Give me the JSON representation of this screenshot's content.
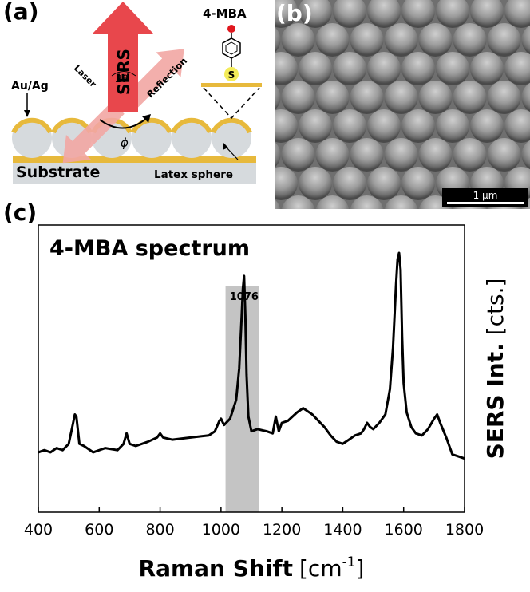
{
  "panels": {
    "a": "(a)",
    "b": "(b)",
    "c": "(c)"
  },
  "schematic": {
    "molecule": "4-MBA",
    "sulfur": "S",
    "coating": "Au/Ag",
    "substrate": "Substrate",
    "sphere": "Latex sphere",
    "laser": "Laser",
    "sers": "SERS",
    "reflection": "Reflection",
    "angle_2theta": "2θ",
    "angle_phi": "ϕ"
  },
  "sem": {
    "scale_bar": "1 µm"
  },
  "colors": {
    "gold": "#e7b93c",
    "sphere": "#d6dadd",
    "substrate": "#d6dadd",
    "sers_arrow": "#e8474c",
    "laser_arrow": "#f2a6a3",
    "highlight_band": "#c4c4c4",
    "sem_bg": "#7d7d7d"
  },
  "chart_data": {
    "type": "line",
    "title": "4-MBA spectrum",
    "xlabel": "Raman Shift",
    "xunit_prefix": "[cm",
    "xunit_exp": "-1",
    "xunit_suffix": "]",
    "ylabel": "SERS Int.",
    "yunit": "[cts.]",
    "xlim": [
      400,
      1800
    ],
    "ylim": [
      0,
      100
    ],
    "xticks": [
      400,
      600,
      800,
      1000,
      1200,
      1400,
      1600,
      1800
    ],
    "yticks": [],
    "highlight_band": [
      1015,
      1125
    ],
    "annotation": {
      "x": 1076,
      "label": "1076"
    },
    "series": [
      {
        "x": [
          400,
          420,
          440,
          460,
          480,
          500,
          510,
          520,
          525,
          535,
          550,
          580,
          620,
          660,
          680,
          690,
          700,
          720,
          760,
          790,
          800,
          810,
          840,
          900,
          960,
          980,
          995,
          1000,
          1010,
          1030,
          1050,
          1060,
          1068,
          1072,
          1076,
          1080,
          1084,
          1090,
          1100,
          1120,
          1150,
          1170,
          1180,
          1190,
          1200,
          1220,
          1250,
          1270,
          1280,
          1300,
          1320,
          1340,
          1360,
          1380,
          1400,
          1420,
          1440,
          1460,
          1470,
          1480,
          1490,
          1500,
          1520,
          1540,
          1555,
          1565,
          1575,
          1580,
          1585,
          1590,
          1595,
          1600,
          1610,
          1625,
          1640,
          1660,
          1680,
          1700,
          1710,
          1720,
          1740,
          1760,
          1780,
          1800
        ],
        "y": [
          5,
          6,
          5,
          7,
          6,
          9,
          16,
          23,
          22,
          9,
          8,
          5,
          7,
          6,
          9,
          14,
          9,
          8,
          10,
          12,
          14,
          12,
          11,
          12,
          13,
          15,
          20,
          21,
          18,
          21,
          30,
          45,
          70,
          83,
          89,
          70,
          42,
          22,
          15,
          16,
          15,
          14,
          22,
          15,
          19,
          20,
          24,
          26,
          25,
          23,
          20,
          17,
          13,
          10,
          9,
          11,
          13,
          14,
          16,
          19,
          17,
          16,
          19,
          23,
          35,
          55,
          85,
          97,
          100,
          92,
          60,
          38,
          24,
          17,
          14,
          13,
          16,
          21,
          23,
          19,
          12,
          4,
          3,
          2
        ]
      }
    ]
  }
}
